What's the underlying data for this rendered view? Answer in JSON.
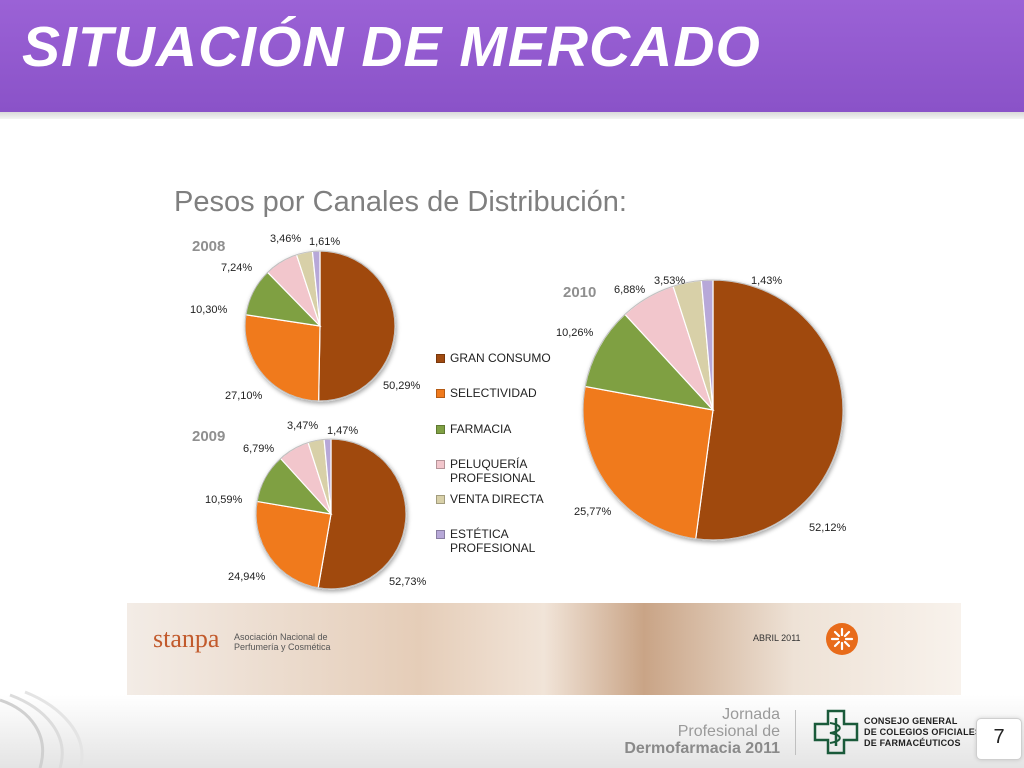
{
  "header": {
    "title": "SITUACIÓN DE MERCADO"
  },
  "chart_data": [
    {
      "type": "pie",
      "title": "2008",
      "categories": [
        "GRAN CONSUMO",
        "SELECTIVIDAD",
        "FARMACIA",
        "PELUQUERÍA PROFESIONAL",
        "VENTA DIRECTA",
        "ESTÉTICA PROFESIONAL"
      ],
      "values": [
        50.29,
        27.1,
        10.3,
        7.24,
        3.46,
        1.61
      ],
      "labels": [
        "50,29%",
        "27,10%",
        "10,30%",
        "7,24%",
        "3,46%",
        "1,61%"
      ]
    },
    {
      "type": "pie",
      "title": "2009",
      "categories": [
        "GRAN CONSUMO",
        "SELECTIVIDAD",
        "FARMACIA",
        "PELUQUERÍA PROFESIONAL",
        "VENTA DIRECTA",
        "ESTÉTICA PROFESIONAL"
      ],
      "values": [
        52.73,
        24.94,
        10.59,
        6.79,
        3.47,
        1.47
      ],
      "labels": [
        "52,73%",
        "24,94%",
        "10,59%",
        "6,79%",
        "3,47%",
        "1,47%"
      ]
    },
    {
      "type": "pie",
      "title": "2010",
      "categories": [
        "GRAN CONSUMO",
        "SELECTIVIDAD",
        "FARMACIA",
        "PELUQUERÍA PROFESIONAL",
        "VENTA DIRECTA",
        "ESTÉTICA PROFESIONAL"
      ],
      "values": [
        52.12,
        25.77,
        10.26,
        6.88,
        3.53,
        1.43
      ],
      "labels": [
        "52,12%",
        "25,77%",
        "10,26%",
        "6,88%",
        "3,53%",
        "1,43%"
      ]
    }
  ],
  "figure": {
    "subtitle": "Pesos por Canales de Distribución:",
    "legend": [
      {
        "label": "GRAN CONSUMO",
        "color": "#a04a10"
      },
      {
        "label": "SELECTIVIDAD",
        "color": "#f07a1c"
      },
      {
        "label": "FARMACIA",
        "color": "#7fa043"
      },
      {
        "label": "PELUQUERÍA\nPROFESIONAL",
        "color": "#f2c6cc"
      },
      {
        "label": "VENTA DIRECTA",
        "color": "#d8d0a8"
      },
      {
        "label": "ESTÉTICA\nPROFESIONAL",
        "color": "#b7a8d8"
      }
    ],
    "banner": {
      "brand": "stanpa",
      "brand_desc": "Asociación Nacional de Perfumería y Cosmética",
      "date": "ABRIL 2011"
    }
  },
  "footer": {
    "event_line1": "Jornada",
    "event_line2": "Profesional de",
    "event_line3": "Dermofarmacia 2011",
    "org_line1": "CONSEJO GENERAL",
    "org_line2": "DE COLEGIOS OFICIALES",
    "org_line3": "DE FARMACÉUTICOS",
    "page_number": "7"
  }
}
